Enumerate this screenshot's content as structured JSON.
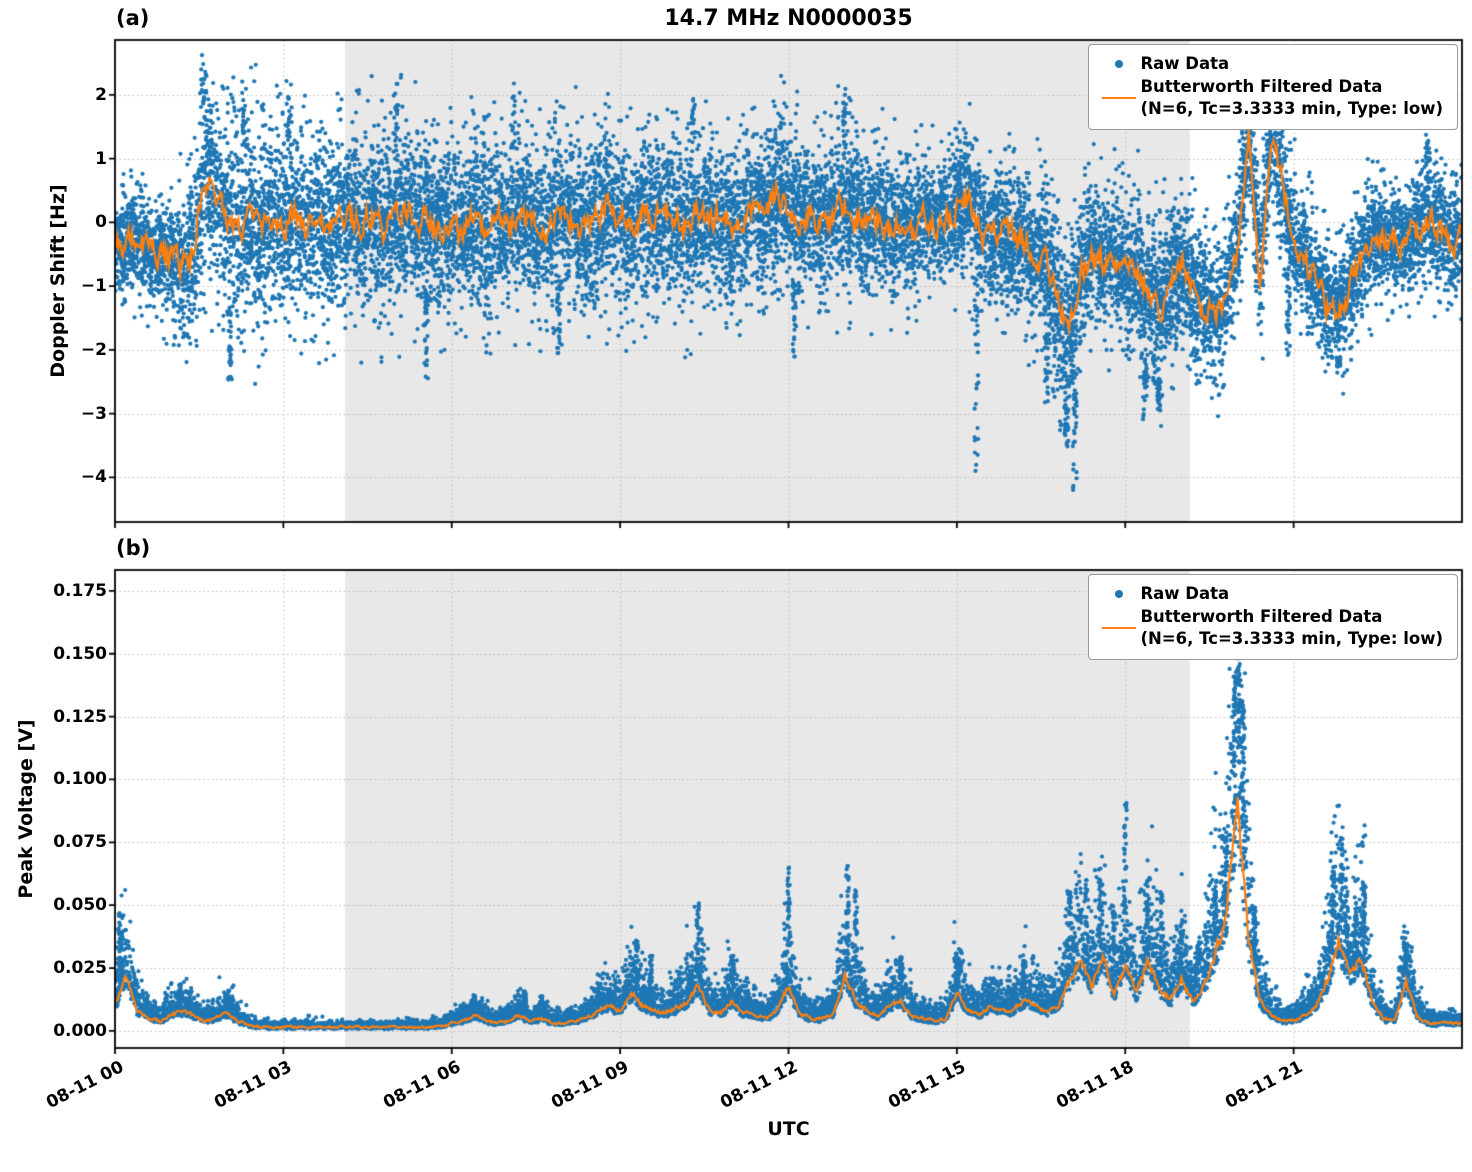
{
  "figure": {
    "title": "14.7 MHz N0000035",
    "background": "#ffffff",
    "colors": {
      "raw": "#1f77b4",
      "filtered": "#ff7f0e",
      "shade": "#e8e8e8",
      "grid": "#bdbdbd",
      "spine": "#000000"
    }
  },
  "x_axis": {
    "range_hours": [
      0,
      24
    ],
    "tick_values": [
      0,
      3,
      6,
      9,
      12,
      15,
      18,
      21
    ],
    "tick_labels": [
      "08-11 00",
      "08-11 03",
      "08-11 06",
      "08-11 09",
      "08-11 12",
      "08-11 15",
      "08-11 18",
      "08-11 21"
    ],
    "xlabel": "UTC"
  },
  "legend": {
    "raw": "Raw Data",
    "filtered_line1": "Butterworth Filtered Data",
    "filtered_line2": "(N=6, Tc=3.3333 min, Type: low)"
  },
  "chart_data": [
    {
      "type": "scatter",
      "panel_label": "(a)",
      "ylabel": "Doppler Shift [Hz]",
      "ylim": [
        -4.7,
        2.86
      ],
      "ytick_values": [
        -4,
        -3,
        -2,
        -1,
        0,
        1,
        2
      ],
      "ytick_labels": [
        "−4",
        "−3",
        "−2",
        "−1",
        "0",
        "1",
        "2"
      ],
      "shaded_hours": [
        4.1,
        19.15
      ],
      "series": {
        "filtered": {
          "t0": 0,
          "dt": 0.2,
          "values": [
            -0.3,
            -0.38,
            -0.25,
            -0.42,
            -0.48,
            -0.55,
            -0.68,
            -0.45,
            0.78,
            0.42,
            0.08,
            -0.12,
            0.06,
            -0.16,
            0.1,
            -0.06,
            0.14,
            -0.1,
            0.06,
            -0.14,
            0.02,
            0.12,
            -0.06,
            0.16,
            -0.1,
            0.05,
            0.22,
            -0.05,
            0.1,
            -0.16,
            0.0,
            -0.2,
            0.06,
            -0.1,
            0.12,
            -0.05,
            0.15,
            0.0,
            -0.15,
            0.06,
            0.2,
            0.0,
            -0.1,
            0.12,
            0.26,
            0.05,
            -0.1,
            0.16,
            0.0,
            0.2,
            0.05,
            -0.06,
            0.15,
            0.0,
            0.1,
            -0.05,
            0.1,
            0.26,
            0.1,
            0.52,
            0.24,
            0.05,
            0.15,
            -0.06,
            0.1,
            0.3,
            0.1,
            -0.05,
            0.1,
            -0.1,
            0.0,
            -0.15,
            0.05,
            -0.05,
            0.1,
            0.2,
            0.36,
            -0.12,
            -0.3,
            -0.15,
            -0.25,
            -0.3,
            -0.5,
            -0.62,
            -1.3,
            -1.78,
            -0.85,
            -0.5,
            -0.62,
            -0.55,
            -0.66,
            -0.8,
            -1.1,
            -1.42,
            -0.92,
            -0.72,
            -1.0,
            -1.3,
            -1.52,
            -1.12,
            -0.4,
            1.5,
            -0.95,
            1.4,
            0.6,
            -0.35,
            -0.62,
            -0.92,
            -1.28,
            -1.35,
            -1.05,
            -0.62,
            -0.32,
            -0.22,
            -0.36,
            -0.3,
            -0.15,
            0.12,
            -0.1,
            -0.32,
            -0.22
          ]
        },
        "scatter_band_halfwidth": {
          "t0": 0,
          "dt": 0.5,
          "values": [
            0.8,
            0.8,
            0.95,
            1.5,
            1.7,
            1.7,
            1.6,
            1.5,
            1.5,
            1.4,
            1.5,
            1.4,
            1.4,
            1.5,
            1.4,
            1.3,
            1.4,
            1.5,
            1.3,
            1.3,
            1.4,
            1.3,
            1.4,
            1.3,
            1.3,
            1.2,
            1.3,
            1.2,
            1.1,
            1.0,
            1.1,
            1.2,
            1.2,
            1.3,
            1.5,
            1.2,
            1.2,
            1.4,
            1.2,
            1.1,
            1.2,
            1.2,
            1.1,
            1.0,
            1.0,
            0.9,
            0.9,
            1.0,
            0.9
          ]
        },
        "outliers_down": [
          {
            "t": 2.05,
            "y": -2.6
          },
          {
            "t": 5.55,
            "y": -2.65
          },
          {
            "t": 7.9,
            "y": -2.4
          },
          {
            "t": 12.1,
            "y": -2.25
          },
          {
            "t": 15.35,
            "y": -4.05
          },
          {
            "t": 16.6,
            "y": -2.9
          },
          {
            "t": 16.95,
            "y": -3.65
          },
          {
            "t": 17.1,
            "y": -4.32
          },
          {
            "t": 18.35,
            "y": -3.25
          },
          {
            "t": 18.6,
            "y": -2.95
          },
          {
            "t": 20.9,
            "y": -2.4
          },
          {
            "t": 21.8,
            "y": -2.3
          }
        ],
        "outliers_up": [
          {
            "t": 1.6,
            "y": 2.5
          },
          {
            "t": 2.3,
            "y": 2.35
          },
          {
            "t": 3.1,
            "y": 2.2
          },
          {
            "t": 5.0,
            "y": 2.3
          },
          {
            "t": 7.1,
            "y": 2.35
          },
          {
            "t": 10.3,
            "y": 2.15
          },
          {
            "t": 13.0,
            "y": 2.2
          },
          {
            "t": 20.1,
            "y": 2.3
          },
          {
            "t": 23.4,
            "y": 2.4
          }
        ]
      }
    },
    {
      "type": "scatter",
      "panel_label": "(b)",
      "ylabel": "Peak Voltage [V]",
      "ylim": [
        -0.0068,
        0.1833
      ],
      "ytick_values": [
        0,
        0.025,
        0.05,
        0.075,
        0.1,
        0.125,
        0.15,
        0.175
      ],
      "ytick_labels": [
        "0.000",
        "0.025",
        "0.050",
        "0.075",
        "0.100",
        "0.125",
        "0.150",
        "0.175"
      ],
      "shaded_hours": [
        4.1,
        19.15
      ],
      "series": {
        "filtered": {
          "t0": 0,
          "dt": 0.2,
          "values": [
            0.01,
            0.022,
            0.008,
            0.005,
            0.004,
            0.006,
            0.008,
            0.006,
            0.004,
            0.005,
            0.007,
            0.004,
            0.002,
            0.0015,
            0.0015,
            0.0015,
            0.0015,
            0.0015,
            0.0015,
            0.0015,
            0.0015,
            0.0015,
            0.0015,
            0.0015,
            0.0015,
            0.0015,
            0.0015,
            0.0015,
            0.0015,
            0.002,
            0.003,
            0.004,
            0.006,
            0.004,
            0.003,
            0.004,
            0.006,
            0.004,
            0.005,
            0.003,
            0.003,
            0.004,
            0.005,
            0.008,
            0.01,
            0.008,
            0.015,
            0.01,
            0.008,
            0.007,
            0.009,
            0.012,
            0.018,
            0.008,
            0.007,
            0.012,
            0.007,
            0.006,
            0.005,
            0.008,
            0.018,
            0.007,
            0.005,
            0.005,
            0.007,
            0.022,
            0.012,
            0.008,
            0.006,
            0.01,
            0.012,
            0.006,
            0.005,
            0.004,
            0.005,
            0.015,
            0.008,
            0.006,
            0.01,
            0.008,
            0.008,
            0.012,
            0.01,
            0.008,
            0.01,
            0.02,
            0.028,
            0.018,
            0.03,
            0.015,
            0.025,
            0.015,
            0.028,
            0.018,
            0.012,
            0.02,
            0.012,
            0.018,
            0.03,
            0.045,
            0.09,
            0.035,
            0.012,
            0.006,
            0.004,
            0.004,
            0.006,
            0.01,
            0.02,
            0.035,
            0.022,
            0.03,
            0.012,
            0.005,
            0.004,
            0.02,
            0.006,
            0.003,
            0.003,
            0.003,
            0.003
          ]
        },
        "spikes": [
          {
            "t": 0.08,
            "y": 0.048
          },
          {
            "t": 1.15,
            "y": 0.016
          },
          {
            "t": 6.4,
            "y": 0.014
          },
          {
            "t": 7.3,
            "y": 0.016
          },
          {
            "t": 7.6,
            "y": 0.014
          },
          {
            "t": 9.3,
            "y": 0.036
          },
          {
            "t": 9.55,
            "y": 0.03
          },
          {
            "t": 10.38,
            "y": 0.051
          },
          {
            "t": 11.0,
            "y": 0.03
          },
          {
            "t": 12.0,
            "y": 0.066
          },
          {
            "t": 13.05,
            "y": 0.066
          },
          {
            "t": 13.2,
            "y": 0.056
          },
          {
            "t": 14.0,
            "y": 0.03
          },
          {
            "t": 15.0,
            "y": 0.031
          },
          {
            "t": 16.2,
            "y": 0.028
          },
          {
            "t": 17.0,
            "y": 0.056
          },
          {
            "t": 17.3,
            "y": 0.06
          },
          {
            "t": 17.55,
            "y": 0.066
          },
          {
            "t": 17.8,
            "y": 0.05
          },
          {
            "t": 18.0,
            "y": 0.091
          },
          {
            "t": 18.4,
            "y": 0.06
          },
          {
            "t": 18.65,
            "y": 0.056
          },
          {
            "t": 19.0,
            "y": 0.046
          },
          {
            "t": 19.3,
            "y": 0.036
          },
          {
            "t": 19.6,
            "y": 0.06
          },
          {
            "t": 19.8,
            "y": 0.076
          },
          {
            "t": 19.95,
            "y": 0.146
          },
          {
            "t": 20.02,
            "y": 0.172
          },
          {
            "t": 20.1,
            "y": 0.13
          },
          {
            "t": 20.3,
            "y": 0.05
          },
          {
            "t": 21.7,
            "y": 0.066
          },
          {
            "t": 21.85,
            "y": 0.081
          },
          {
            "t": 21.95,
            "y": 0.056
          },
          {
            "t": 22.1,
            "y": 0.046
          },
          {
            "t": 22.25,
            "y": 0.06
          },
          {
            "t": 23.0,
            "y": 0.036
          }
        ]
      }
    }
  ]
}
